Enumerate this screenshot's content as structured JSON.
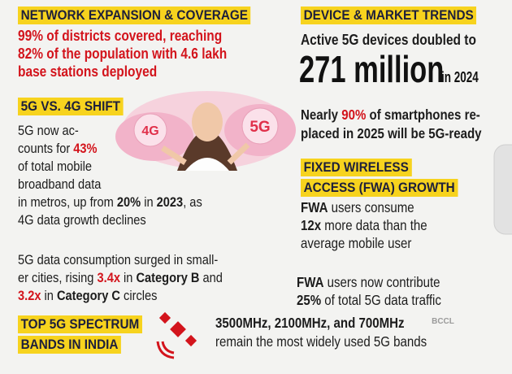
{
  "network": {
    "heading": [
      "NETWORK EXPANSION & COVERAGE"
    ],
    "lines": [
      [
        {
          "text": "99% of districts covered, reaching",
          "style": "red"
        }
      ],
      [
        {
          "text": "82% of the population with 4.6 lakh",
          "style": "red"
        }
      ],
      [
        {
          "text": "base stations deployed",
          "style": "red"
        }
      ]
    ]
  },
  "shift": {
    "heading": [
      "5G VS. 4G SHIFT"
    ],
    "lines": [
      [
        {
          "text": "5G now ac-",
          "style": "normal"
        }
      ],
      [
        {
          "text": "counts for ",
          "style": "normal"
        },
        {
          "text": "43%",
          "style": "red"
        }
      ],
      [
        {
          "text": "of total mobile",
          "style": "normal"
        }
      ],
      [
        {
          "text": "broadband data",
          "style": "normal"
        }
      ],
      [
        {
          "text": "in metros, up from ",
          "style": "normal"
        },
        {
          "text": "20%",
          "style": "bold"
        },
        {
          "text": " in ",
          "style": "normal"
        },
        {
          "text": "2023",
          "style": "bold"
        },
        {
          "text": ", as",
          "style": "normal"
        }
      ],
      [
        {
          "text": "4G data growth declines",
          "style": "normal"
        }
      ]
    ]
  },
  "cities": {
    "lines": [
      [
        {
          "text": "5G data consumption surged in small-",
          "style": "normal"
        }
      ],
      [
        {
          "text": "er cities, rising ",
          "style": "normal"
        },
        {
          "text": "3.4x",
          "style": "red"
        },
        {
          "text": " in ",
          "style": "normal"
        },
        {
          "text": "Category B",
          "style": "bold"
        },
        {
          "text": " and",
          "style": "normal"
        }
      ],
      [
        {
          "text": "3.2x",
          "style": "red"
        },
        {
          "text": " in ",
          "style": "normal"
        },
        {
          "text": "Category C",
          "style": "bold"
        },
        {
          "text": " circles",
          "style": "normal"
        }
      ]
    ]
  },
  "spectrum": {
    "heading": [
      "TOP 5G SPECTRUM",
      "BANDS IN INDIA"
    ],
    "lines": [
      [
        {
          "text": "3500MHz, 2100MHz, and 700MHz",
          "style": "bold"
        }
      ],
      [
        {
          "text": "remain the most widely used 5G bands",
          "style": "normal"
        }
      ]
    ]
  },
  "device": {
    "heading": [
      "DEVICE & MARKET TRENDS"
    ],
    "lines": [
      [
        {
          "text": "Active 5G devices doubled to",
          "style": "bold"
        }
      ]
    ],
    "highlight": {
      "number": "271 million",
      "period": "in 2024"
    },
    "note": [
      [
        {
          "text": "Nearly ",
          "style": "bold"
        },
        {
          "text": "90%",
          "style": "red"
        },
        {
          "text": " of smartphones re-",
          "style": "bold"
        }
      ],
      [
        {
          "text": "placed in 2025 will be 5G-ready",
          "style": "bold"
        }
      ]
    ]
  },
  "fwa": {
    "heading": [
      "FIXED WIRELESS",
      "ACCESS (FWA) GROWTH"
    ],
    "lines": [
      [
        {
          "text": "FWA",
          "style": "bold"
        },
        {
          "text": " users consume",
          "style": "normal"
        }
      ],
      [
        {
          "text": "12x",
          "style": "bold"
        },
        {
          "text": " more data than the",
          "style": "normal"
        }
      ],
      [
        {
          "text": "average mobile user",
          "style": "normal"
        }
      ]
    ],
    "share": [
      [
        {
          "text": "FWA",
          "style": "bold"
        },
        {
          "text": " users now contribute",
          "style": "normal"
        }
      ],
      [
        {
          "text": "25%",
          "style": "bold"
        },
        {
          "text": " of total 5G data traffic",
          "style": "normal"
        }
      ]
    ]
  },
  "illustration": {
    "left": "4G",
    "right": "5G"
  },
  "watermark": "BCCL"
}
